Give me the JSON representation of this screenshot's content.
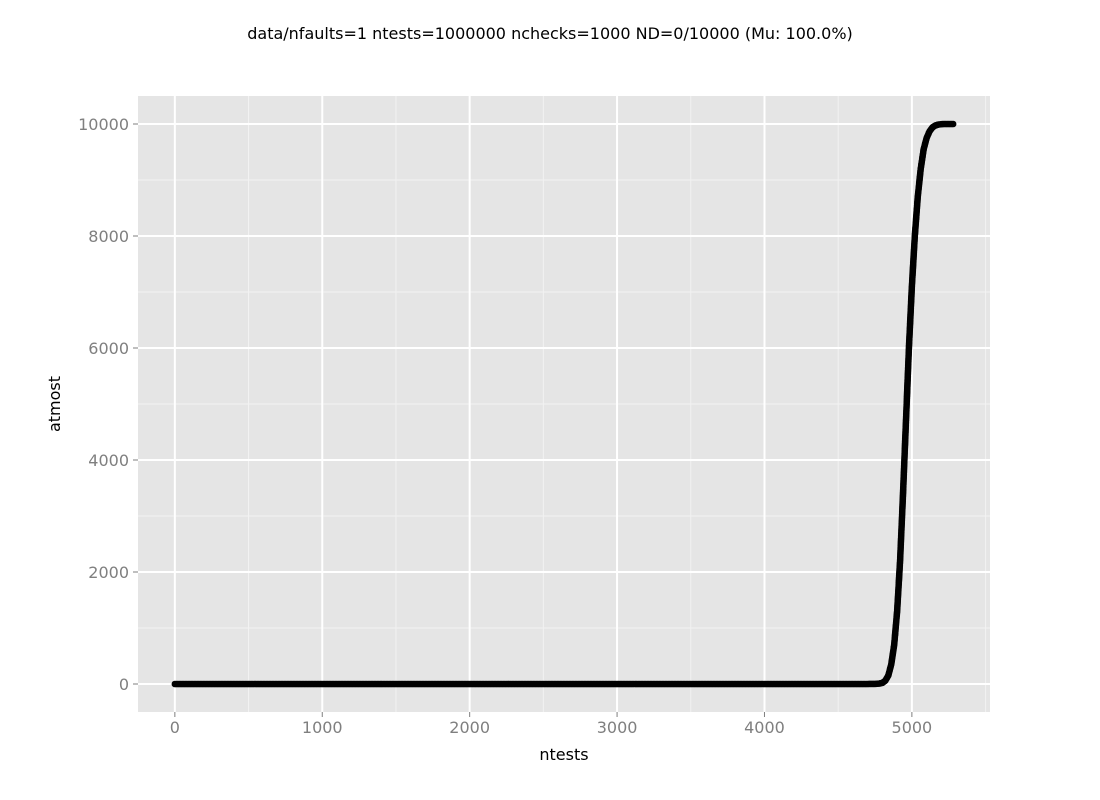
{
  "chart_data": {
    "type": "scatter",
    "title": "data/nfaults=1 ntests=1000000 nchecks=1000  ND=0/10000 (Mu: 100.0%)",
    "xlabel": "ntests",
    "ylabel": "atmost",
    "xlim": [
      -250,
      5530
    ],
    "ylim": [
      -500,
      10500
    ],
    "x_ticks": [
      0,
      1000,
      2000,
      3000,
      4000,
      5000
    ],
    "y_ticks": [
      0,
      2000,
      4000,
      6000,
      8000,
      10000
    ],
    "grid": true,
    "legend": "none",
    "point_color": "#000000",
    "panel_color": "#e5e5e5",
    "series": [
      {
        "x": [
          0,
          4700,
          4750,
          4780,
          4800,
          4820,
          4840,
          4860,
          4880,
          4900,
          4920,
          4940,
          4960,
          4980,
          5000,
          5020,
          5040,
          5060,
          5080,
          5100,
          5120,
          5140,
          5160,
          5180,
          5200,
          5220,
          5250,
          5280
        ],
        "y": [
          0,
          0,
          2,
          8,
          20,
          60,
          150,
          350,
          700,
          1300,
          2200,
          3400,
          4700,
          6000,
          7100,
          8000,
          8700,
          9200,
          9550,
          9750,
          9870,
          9940,
          9975,
          9990,
          9997,
          10000,
          10000,
          10000
        ]
      }
    ]
  }
}
